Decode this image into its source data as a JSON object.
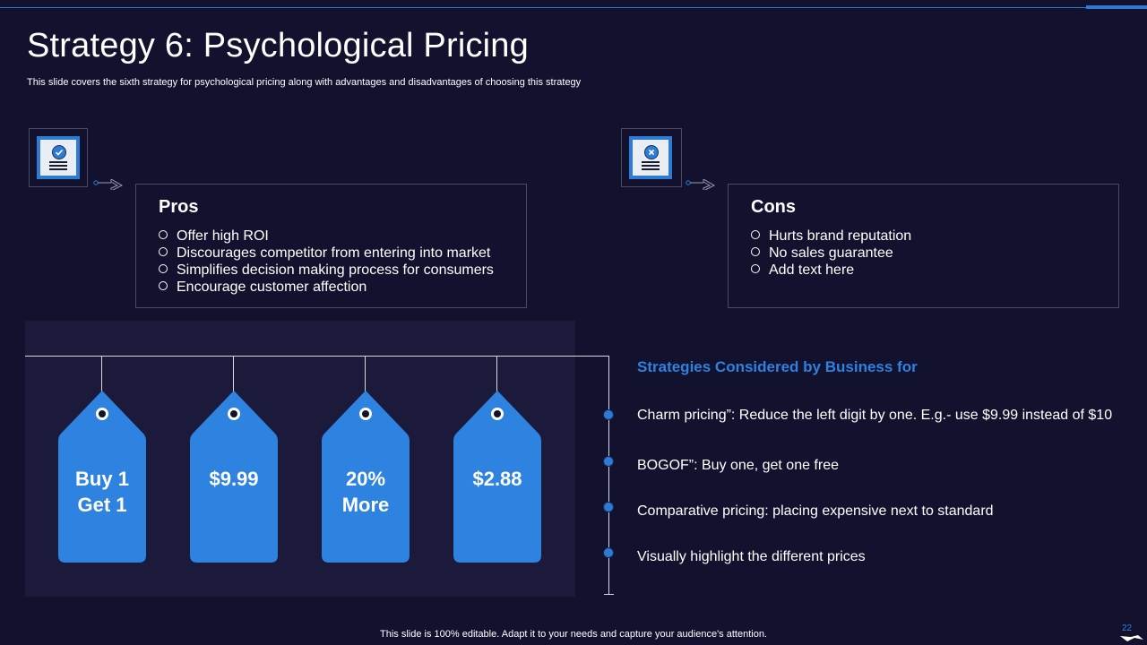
{
  "slide": {
    "title": "Strategy 6: Psychological Pricing",
    "subtitle": "This slide covers the sixth strategy for psychological pricing along with advantages and disadvantages of choosing this strategy"
  },
  "pros": {
    "heading": "Pros",
    "icon": "document-check-icon",
    "items": [
      "Offer high ROI",
      "Discourages competitor from entering into market",
      "Simplifies decision making process for consumers",
      "Encourage customer affection"
    ]
  },
  "cons": {
    "heading": "Cons",
    "icon": "document-cross-icon",
    "items": [
      "Hurts brand reputation",
      "No sales guarantee",
      "Add text here"
    ]
  },
  "tags": [
    {
      "line1": "Buy 1",
      "line2": "Get 1"
    },
    {
      "line1": "$9.99",
      "line2": ""
    },
    {
      "line1": "20%",
      "line2": "More"
    },
    {
      "line1": "$2.88",
      "line2": ""
    }
  ],
  "strategies": {
    "title": "Strategies Considered by Business for",
    "items": [
      "Charm pricing”: Reduce the left digit by one. E.g.- use $9.99 instead of $10",
      "BOGOF”: Buy one, get one free",
      "Comparative pricing: placing expensive  next to standard",
      "Visually highlight the different prices"
    ]
  },
  "footer": {
    "text": "This slide is 100% editable. Adapt it to your needs and capture your audience's attention.",
    "page_number": "22"
  },
  "colors": {
    "background": "#12112e",
    "accent": "#2e7bd6",
    "panel": "#1b1a3b"
  }
}
